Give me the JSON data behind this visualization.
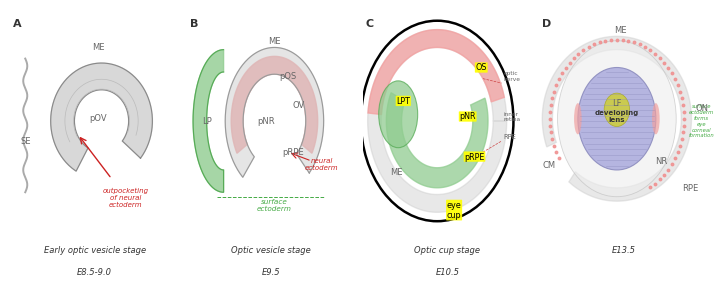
{
  "bg_color": "#ffffff",
  "panels": [
    {
      "label": "A",
      "title_line1": "Early optic vesicle stage",
      "title_line2": "E8.5-9.0"
    },
    {
      "label": "B",
      "title_line1": "Optic vesicle stage",
      "title_line2": "E9.5"
    },
    {
      "label": "C",
      "title_line1": "Optic cup stage",
      "title_line2": "E10.5"
    },
    {
      "label": "D",
      "title_line1": "",
      "title_line2": "E13.5"
    }
  ],
  "gray_shell": "#cccccc",
  "pink_fill": "#f4a0a0",
  "green_fill": "#90cc90",
  "blue_fill": "#aaaadd",
  "yellow_bg": "#ffff00",
  "red_text": "#cc2222",
  "green_text": "#44aa44",
  "dark_text": "#333333",
  "mid_text": "#666666"
}
